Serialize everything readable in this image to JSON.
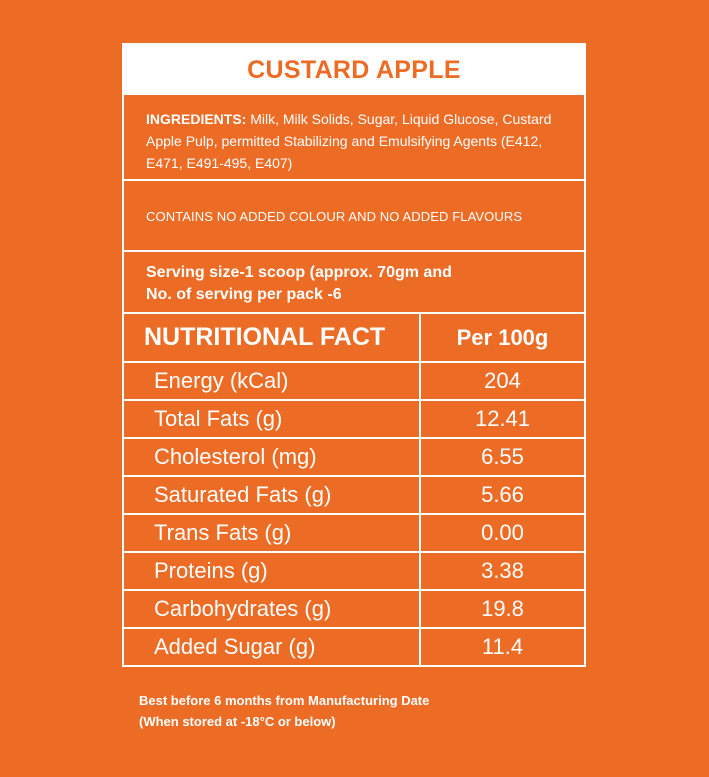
{
  "title": "CUSTARD APPLE",
  "ingredients": {
    "label": "INGREDIENTS:",
    "text": "Milk, Milk Solids, Sugar, Liquid Glucose, Custard Apple Pulp, permitted Stabilizing and Emulsifying Agents (E412, E471, E491-495, E407)"
  },
  "contains_note": "CONTAINS NO ADDED COLOUR AND NO ADDED FLAVOURS",
  "serving": {
    "line1": "Serving size-1 scoop (approx. 70gm and",
    "line2": "No. of serving per pack -6"
  },
  "nutrition": {
    "header_name": "NUTRITIONAL FACT",
    "header_value": "Per 100g",
    "rows": [
      {
        "name": "Energy (kCal)",
        "value": "204"
      },
      {
        "name": "Total Fats (g)",
        "value": "12.41"
      },
      {
        "name": "Cholesterol (mg)",
        "value": "6.55"
      },
      {
        "name": "Saturated Fats (g)",
        "value": "5.66"
      },
      {
        "name": "Trans Fats (g)",
        "value": "0.00"
      },
      {
        "name": "Proteins (g)",
        "value": "3.38"
      },
      {
        "name": "Carbohydrates (g)",
        "value": "19.8"
      },
      {
        "name": "Added Sugar (g)",
        "value": "11.4"
      }
    ]
  },
  "footer": {
    "line1": "Best before 6 months from Manufacturing Date",
    "line2": "(When stored at -18°C or below)"
  },
  "colors": {
    "background": "#ec6b25",
    "foreground": "#ffffff"
  }
}
